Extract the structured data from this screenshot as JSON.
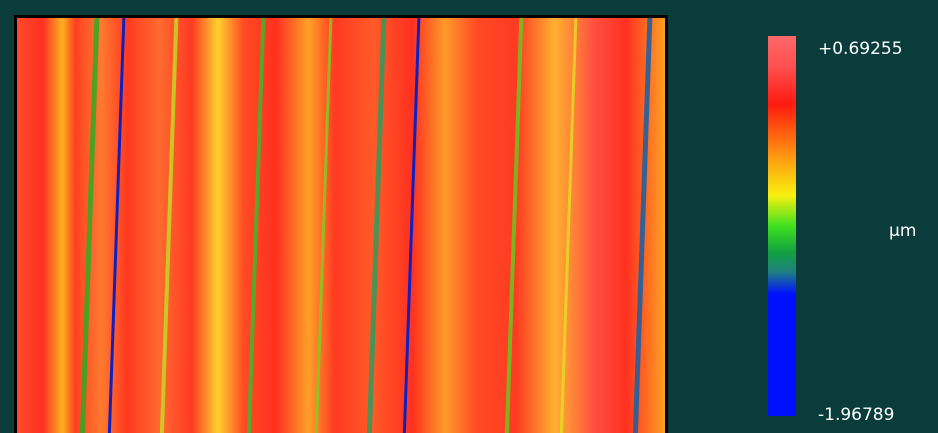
{
  "colorbar": {
    "max_label": "+0.69255",
    "unit": "µm",
    "min_label": "-1.96789"
  }
}
